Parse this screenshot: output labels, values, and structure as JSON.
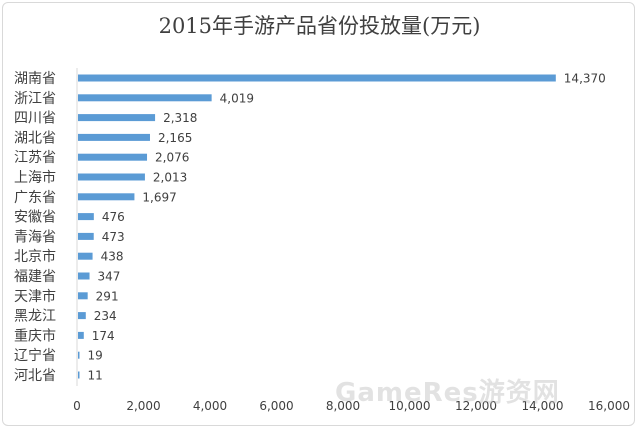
{
  "chart_data": {
    "type": "bar",
    "orientation": "horizontal",
    "title": "2015年手游产品省份投放量(万元)",
    "categories": [
      "湖南省",
      "浙江省",
      "四川省",
      "湖北省",
      "江苏省",
      "上海市",
      "广东省",
      "安徽省",
      "青海省",
      "北京市",
      "福建省",
      "天津市",
      "黑龙江",
      "重庆市",
      "辽宁省",
      "河北省"
    ],
    "values": [
      14370,
      4019,
      2318,
      2165,
      2076,
      2013,
      1697,
      476,
      473,
      438,
      347,
      291,
      234,
      174,
      19,
      11
    ],
    "data_labels": [
      "14,370",
      "4,019",
      "2,318",
      "2,165",
      "2,076",
      "2,013",
      "1,697",
      "476",
      "473",
      "438",
      "347",
      "291",
      "234",
      "174",
      "19",
      "11"
    ],
    "x_ticks": [
      0,
      2000,
      4000,
      6000,
      8000,
      10000,
      12000,
      14000,
      16000
    ],
    "x_tick_labels": [
      "0",
      "2,000",
      "4,000",
      "6,000",
      "8,000",
      "10,000",
      "12,000",
      "14,000",
      "16,000"
    ],
    "xlim": [
      0,
      16000
    ],
    "grid": false,
    "bar_color": "#5b9bd5",
    "text_color": "#404040"
  },
  "watermark": "GameRes游资网"
}
